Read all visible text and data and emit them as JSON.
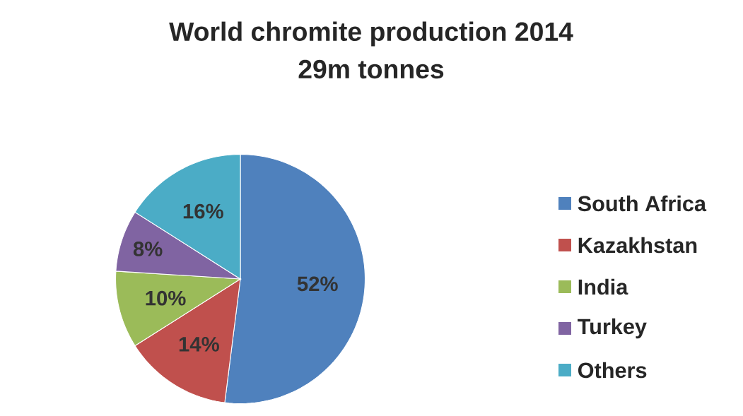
{
  "chart_data": {
    "type": "pie",
    "title": "World chromite production 2014",
    "subtitle": "29m tonnes",
    "categories": [
      "South Africa",
      "Kazakhstan",
      "India",
      "Turkey",
      "Others"
    ],
    "values": [
      52,
      14,
      10,
      8,
      16
    ],
    "colors": [
      "#4f81bd",
      "#c0504d",
      "#9bbb59",
      "#8064a2",
      "#4bacc6"
    ],
    "value_labels": [
      "52%",
      "14%",
      "10%",
      "8%",
      "16%"
    ],
    "legend": "right"
  }
}
